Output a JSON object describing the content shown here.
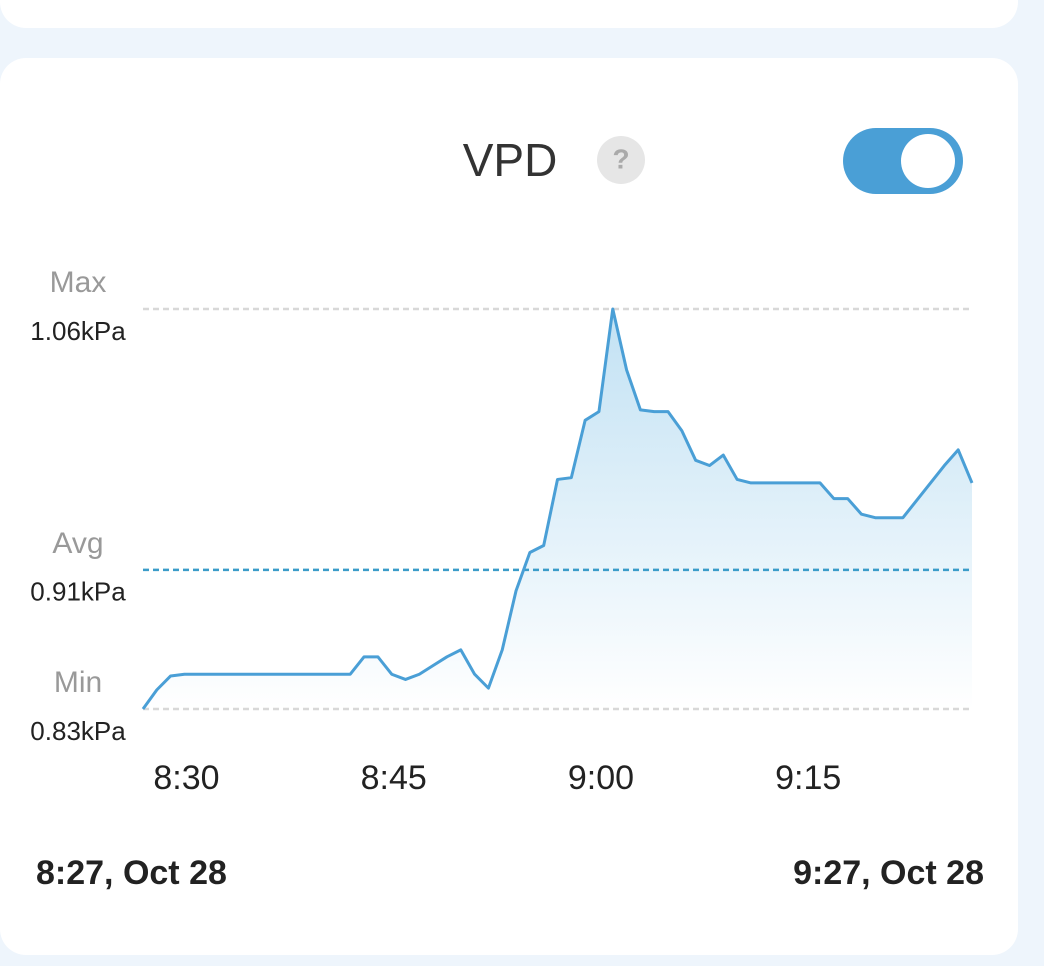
{
  "chart_data": {
    "type": "line",
    "title": "VPD",
    "help_icon": "?",
    "toggle_on": true,
    "x": [
      "8:27",
      "8:28",
      "8:29",
      "8:30",
      "8:31",
      "8:32",
      "8:33",
      "8:34",
      "8:35",
      "8:36",
      "8:37",
      "8:38",
      "8:39",
      "8:40",
      "8:41",
      "8:42",
      "8:43",
      "8:44",
      "8:45",
      "8:46",
      "8:47",
      "8:48",
      "8:49",
      "8:50",
      "8:51",
      "8:52",
      "8:53",
      "8:54",
      "8:55",
      "8:56",
      "8:57",
      "8:58",
      "8:59",
      "9:00",
      "9:01",
      "9:02",
      "9:03",
      "9:04",
      "9:05",
      "9:06",
      "9:07",
      "9:08",
      "9:09",
      "9:10",
      "9:11",
      "9:12",
      "9:13",
      "9:14",
      "9:15",
      "9:16",
      "9:17",
      "9:18",
      "9:19",
      "9:20",
      "9:21",
      "9:22",
      "9:23",
      "9:24",
      "9:25",
      "9:26",
      "9:27"
    ],
    "values": [
      0.83,
      0.841,
      0.849,
      0.85,
      0.85,
      0.85,
      0.85,
      0.85,
      0.85,
      0.85,
      0.85,
      0.85,
      0.85,
      0.85,
      0.85,
      0.85,
      0.86,
      0.86,
      0.85,
      0.847,
      0.85,
      0.855,
      0.86,
      0.864,
      0.85,
      0.842,
      0.864,
      0.898,
      0.92,
      0.924,
      0.962,
      0.963,
      0.996,
      1.001,
      1.06,
      1.025,
      1.002,
      1.001,
      1.001,
      0.99,
      0.973,
      0.97,
      0.976,
      0.962,
      0.96,
      0.96,
      0.96,
      0.96,
      0.96,
      0.96,
      0.951,
      0.951,
      0.942,
      0.94,
      0.94,
      0.94,
      0.95,
      0.96,
      0.97,
      0.979,
      0.96
    ],
    "color": "#4a9fd6",
    "xlim": [
      "8:27",
      "9:27"
    ],
    "xticks": [
      "8:30",
      "8:45",
      "9:00",
      "9:15"
    ],
    "ylim": [
      0.83,
      1.06
    ],
    "reference_lines": [
      {
        "label": "Max",
        "value": 1.06,
        "value_label": "1.06kPa",
        "color": "#d8d8d8"
      },
      {
        "label": "Avg",
        "value": 0.91,
        "value_label": "0.91kPa",
        "color": "#3a9cc9"
      },
      {
        "label": "Min",
        "value": 0.83,
        "value_label": "0.83kPa",
        "color": "#d8d8d8"
      }
    ],
    "start_label": "8:27, Oct 28",
    "end_label": "9:27, Oct 28"
  }
}
